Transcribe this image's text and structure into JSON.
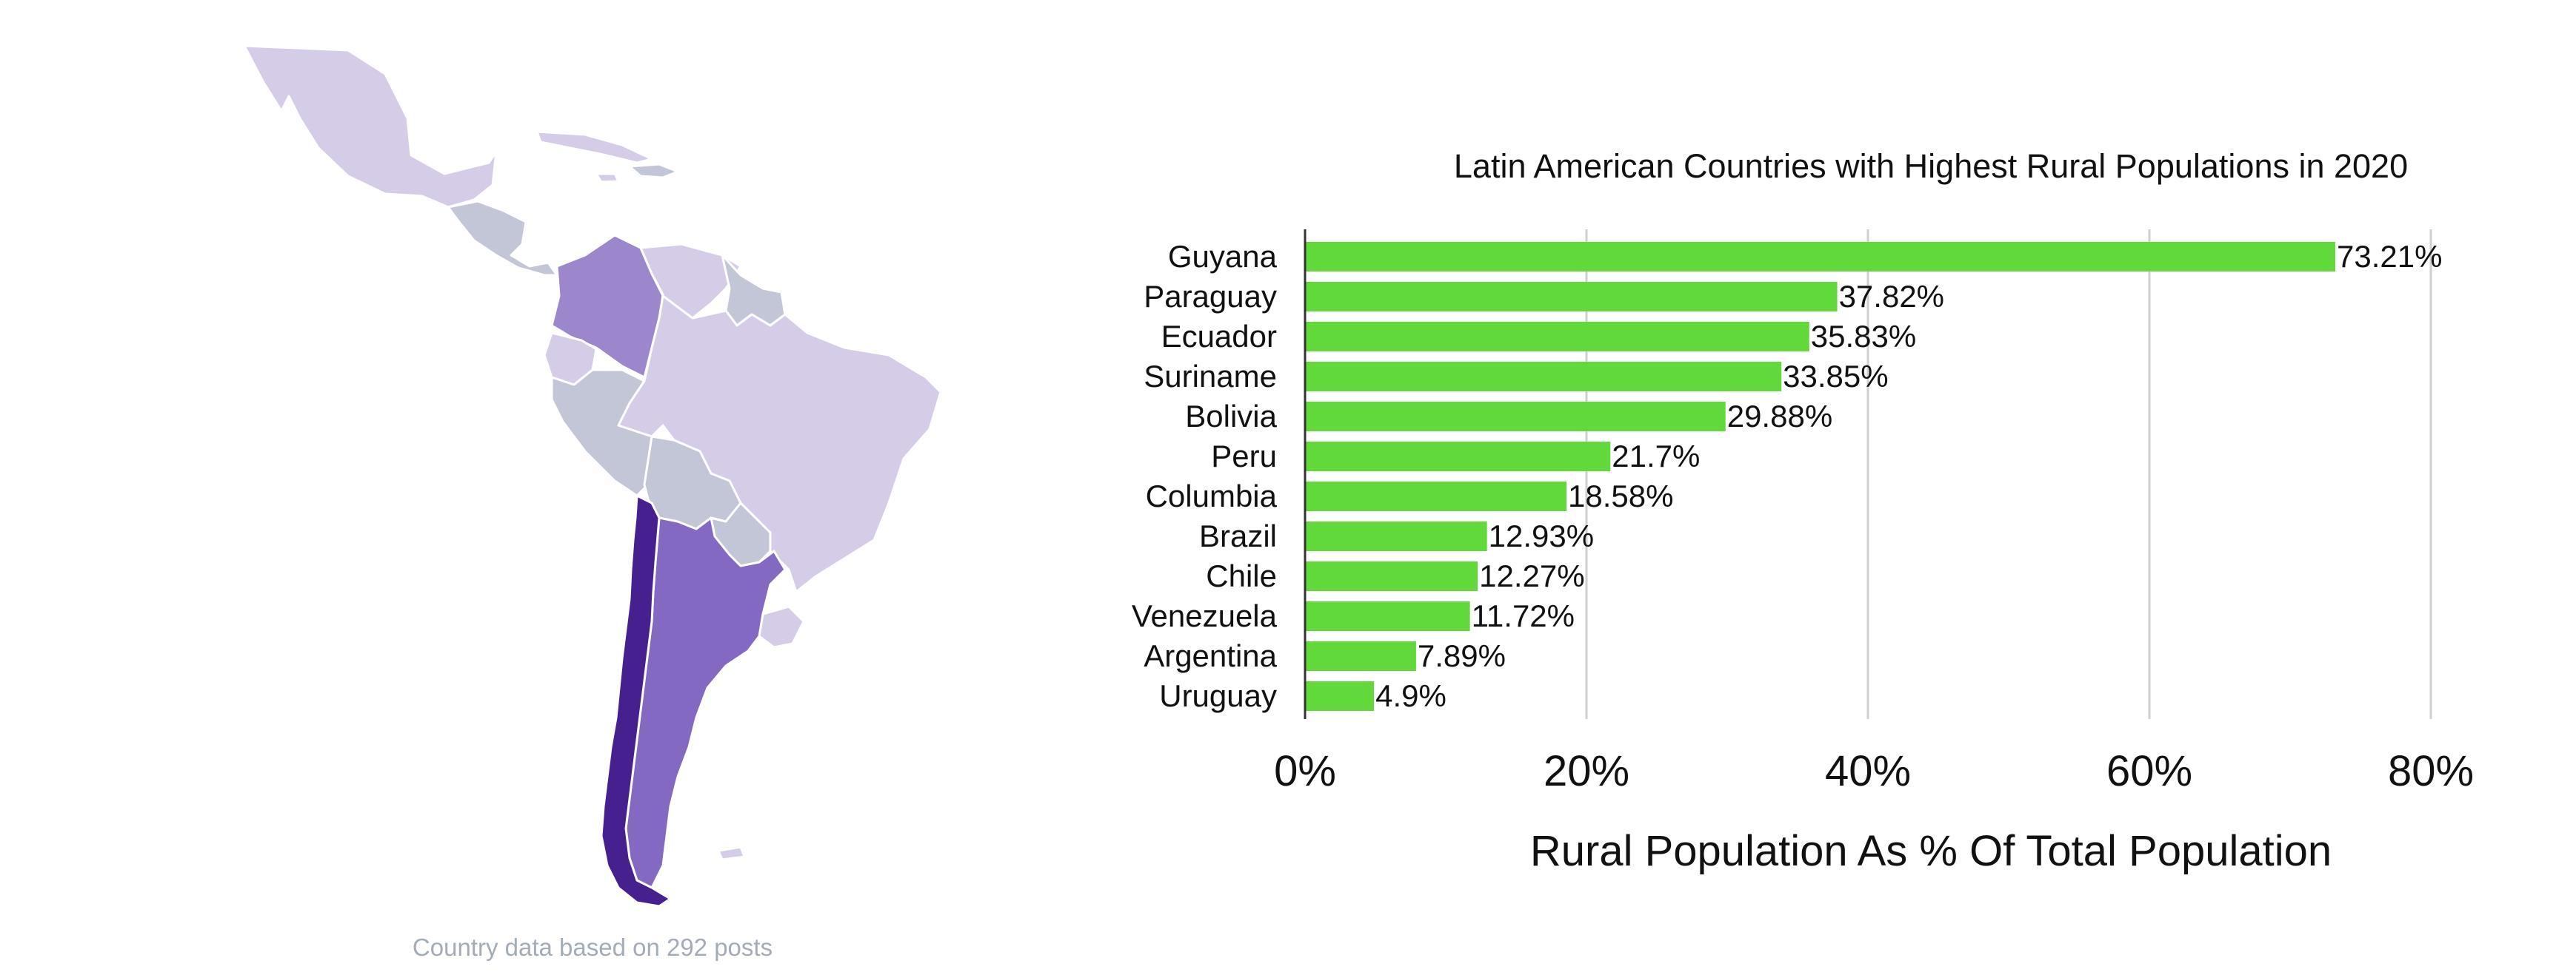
{
  "map": {
    "caption": "Country data based on 292 posts",
    "colors": {
      "lightest": "#d5cde8",
      "light": "#c3c6d6",
      "medium": "#9c86cc",
      "strong": "#8469c3",
      "darkest": "#46208f"
    }
  },
  "chart_data": {
    "type": "bar",
    "orientation": "horizontal",
    "title": "Latin American Countries with Highest Rural Populations in 2020",
    "xlabel": "Rural Population As % Of Total Population",
    "ylabel": "",
    "xlim": [
      0,
      80
    ],
    "xticks": [
      "0%",
      "20%",
      "40%",
      "60%",
      "80%"
    ],
    "grid": "vertical",
    "bar_color": "#62d93a",
    "categories": [
      "Guyana",
      "Paraguay",
      "Ecuador",
      "Suriname",
      "Bolivia",
      "Peru",
      "Columbia",
      "Brazil",
      "Chile",
      "Venezuela",
      "Argentina",
      "Uruguay"
    ],
    "values": [
      73.21,
      37.82,
      35.83,
      33.85,
      29.88,
      21.7,
      18.58,
      12.93,
      12.27,
      11.72,
      7.89,
      4.9
    ],
    "value_labels": [
      "73.21%",
      "37.82%",
      "35.83%",
      "33.85%",
      "29.88%",
      "21.7%",
      "18.58%",
      "12.93%",
      "12.27%",
      "11.72%",
      "7.89%",
      "4.9%"
    ]
  }
}
